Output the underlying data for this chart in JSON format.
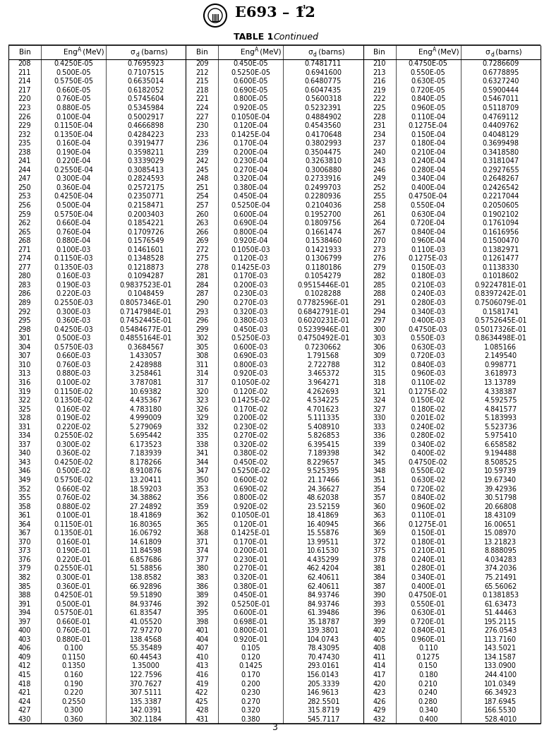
{
  "title_text": "E693 – 12",
  "title_superscript": "ε¹",
  "table_label": "TABLE 1",
  "table_continued": "Continued",
  "page_number": "3",
  "col_headers_bin": "Bin",
  "col_headers_eng": "Eng",
  "col_headers_eng_sup": "A",
  "col_headers_eng_unit": " (MeV)",
  "col_headers_sig": "σ",
  "col_headers_sig_sub": "d",
  "col_headers_sig_unit": " (barns)",
  "rows": [
    [
      208,
      "0.4250E-05",
      "0.7695923",
      209,
      "0.450E-05",
      "0.7481711",
      210,
      "0.4750E-05",
      "0.7286609"
    ],
    [
      211,
      "0.500E-05",
      "0.7107515",
      212,
      "0.5250E-05",
      "0.6941600",
      213,
      "0.550E-05",
      "0.6778895"
    ],
    [
      214,
      "0.5750E-05",
      "0.6635014",
      215,
      "0.600E-05",
      "0.6480775",
      216,
      "0.630E-05",
      "0.6327240"
    ],
    [
      217,
      "0.660E-05",
      "0.6182052",
      218,
      "0.690E-05",
      "0.6047435",
      219,
      "0.720E-05",
      "0.5900444"
    ],
    [
      220,
      "0.760E-05",
      "0.5745604",
      221,
      "0.800E-05",
      "0.5600318",
      222,
      "0.840E-05",
      "0.5467011"
    ],
    [
      223,
      "0.880E-05",
      "0.5345984",
      224,
      "0.920E-05",
      "0.5232391",
      225,
      "0.960E-05",
      "0.5118709"
    ],
    [
      226,
      "0.100E-04",
      "0.5002917",
      227,
      "0.1050E-04",
      "0.4884902",
      228,
      "0.110E-04",
      "0.4769112"
    ],
    [
      229,
      "0.1150E-04",
      "0.4666898",
      230,
      "0.120E-04",
      "0.4543560",
      231,
      "0.1275E-04",
      "0.4409762"
    ],
    [
      232,
      "0.1350E-04",
      "0.4284223",
      233,
      "0.1425E-04",
      "0.4170648",
      234,
      "0.150E-04",
      "0.4048129"
    ],
    [
      235,
      "0.160E-04",
      "0.3919477",
      236,
      "0.170E-04",
      "0.3802993",
      237,
      "0.180E-04",
      "0.3699498"
    ],
    [
      238,
      "0.190E-04",
      "0.3598211",
      239,
      "0.200E-04",
      "0.3504475",
      240,
      "0.210E-04",
      "0.3418580"
    ],
    [
      241,
      "0.220E-04",
      "0.3339029",
      242,
      "0.230E-04",
      "0.3263810",
      243,
      "0.240E-04",
      "0.3181047"
    ],
    [
      244,
      "0.2550E-04",
      "0.3085413",
      245,
      "0.270E-04",
      "0.3006880",
      246,
      "0.280E-04",
      "0.2927655"
    ],
    [
      247,
      "0.300E-04",
      "0.2824593",
      248,
      "0.320E-04",
      "0.2733916",
      249,
      "0.340E-04",
      "0.2648267"
    ],
    [
      250,
      "0.360E-04",
      "0.2572175",
      251,
      "0.380E-04",
      "0.2499703",
      252,
      "0.400E-04",
      "0.2426542"
    ],
    [
      253,
      "0.4250E-04",
      "0.2350771",
      254,
      "0.450E-04",
      "0.2280936",
      255,
      "0.4750E-04",
      "0.2217044"
    ],
    [
      256,
      "0.500E-04",
      "0.2158471",
      257,
      "0.5250E-04",
      "0.2104036",
      258,
      "0.550E-04",
      "0.2050605"
    ],
    [
      259,
      "0.5750E-04",
      "0.2003403",
      260,
      "0.600E-04",
      "0.1952700",
      261,
      "0.630E-04",
      "0.1902102"
    ],
    [
      262,
      "0.660E-04",
      "0.1854221",
      263,
      "0.690E-04",
      "0.1809756",
      264,
      "0.720E-04",
      "0.1761094"
    ],
    [
      265,
      "0.760E-04",
      "0.1709726",
      266,
      "0.800E-04",
      "0.1661474",
      267,
      "0.840E-04",
      "0.1616956"
    ],
    [
      268,
      "0.880E-04",
      "0.1576549",
      269,
      "0.920E-04",
      "0.1538460",
      270,
      "0.960E-04",
      "0.1500470"
    ],
    [
      271,
      "0.100E-03",
      "0.1461601",
      272,
      "0.1050E-03",
      "0.1421933",
      273,
      "0.110E-03",
      "0.1382971"
    ],
    [
      274,
      "0.1150E-03",
      "0.1348528",
      275,
      "0.120E-03",
      "0.1306799",
      276,
      "0.1275E-03",
      "0.1261477"
    ],
    [
      277,
      "0.1350E-03",
      "0.1218873",
      278,
      "0.1425E-03",
      "0.1180186",
      279,
      "0.150E-03",
      "0.1138330"
    ],
    [
      280,
      "0.160E-03",
      "0.1094287",
      281,
      "0.170E-03",
      "0.1054279",
      282,
      "0.180E-03",
      "0.1018602"
    ],
    [
      283,
      "0.190E-03",
      "0.9837523E-01",
      284,
      "0.200E-03",
      "0.9515446E-01",
      285,
      "0.210E-03",
      "0.9224781E-01"
    ],
    [
      286,
      "0.220E-03",
      "0.1048459",
      287,
      "0.230E-03",
      "0.1028288",
      288,
      "0.240E-03",
      "0.8397242E-01"
    ],
    [
      289,
      "0.2550E-03",
      "0.8057346E-01",
      290,
      "0.270E-03",
      "0.7782596E-01",
      291,
      "0.280E-03",
      "0.7506079E-01"
    ],
    [
      292,
      "0.300E-03",
      "0.7147984E-01",
      293,
      "0.320E-03",
      "0.6842791E-01",
      294,
      "0.340E-03",
      "0.1581741"
    ],
    [
      295,
      "0.360E-03",
      "0.7452445E-01",
      296,
      "0.380E-03",
      "0.6020231E-01",
      297,
      "0.400E-03",
      "0.5752645E-01"
    ],
    [
      298,
      "0.4250E-03",
      "0.5484677E-01",
      299,
      "0.450E-03",
      "0.5239946E-01",
      300,
      "0.4750E-03",
      "0.5017326E-01"
    ],
    [
      301,
      "0.500E-03",
      "0.4855164E-01",
      302,
      "0.5250E-03",
      "0.4750492E-01",
      303,
      "0.550E-03",
      "0.8634498E-01"
    ],
    [
      304,
      "0.5750E-03",
      "0.3684567",
      305,
      "0.600E-03",
      "0.7230662",
      306,
      "0.630E-03",
      "1.085166"
    ],
    [
      307,
      "0.660E-03",
      "1.433057",
      308,
      "0.690E-03",
      "1.791568",
      309,
      "0.720E-03",
      "2.149540"
    ],
    [
      310,
      "0.760E-03",
      "2.428988",
      311,
      "0.800E-03",
      "2.722788",
      312,
      "0.840E-03",
      "0.998771"
    ],
    [
      313,
      "0.880E-03",
      "3.258461",
      314,
      "0.920E-03",
      "3.465372",
      315,
      "0.960E-03",
      "3.618973"
    ],
    [
      316,
      "0.100E-02",
      "3.787081",
      317,
      "0.1050E-02",
      "3.964271",
      318,
      "0.110E-02",
      "13.13789"
    ],
    [
      319,
      "0.1150E-02",
      "10.69382",
      320,
      "0.120E-02",
      "4.262693",
      321,
      "0.1275E-02",
      "4.338387"
    ],
    [
      322,
      "0.1350E-02",
      "4.435367",
      323,
      "0.1425E-02",
      "4.534225",
      324,
      "0.150E-02",
      "4.592575"
    ],
    [
      325,
      "0.160E-02",
      "4.783180",
      326,
      "0.170E-02",
      "4.701623",
      327,
      "0.180E-02",
      "4.841577"
    ],
    [
      328,
      "0.190E-02",
      "4.999009",
      329,
      "0.200E-02",
      "5.111335",
      330,
      "0.201E-02",
      "5.183993"
    ],
    [
      331,
      "0.220E-02",
      "5.279069",
      332,
      "0.230E-02",
      "5.408910",
      333,
      "0.240E-02",
      "5.523736"
    ],
    [
      334,
      "0.2550E-02",
      "5.695442",
      335,
      "0.270E-02",
      "5.826853",
      336,
      "0.280E-02",
      "5.975410"
    ],
    [
      337,
      "0.300E-02",
      "6.173523",
      338,
      "0.320E-02",
      "6.395415",
      339,
      "0.340E-02",
      "6.658582"
    ],
    [
      340,
      "0.360E-02",
      "7.183939",
      341,
      "0.380E-02",
      "7.189398",
      342,
      "0.400E-02",
      "9.194488"
    ],
    [
      343,
      "0.4250E-02",
      "8.178266",
      344,
      "0.450E-02",
      "8.229657",
      345,
      "0.4750E-02",
      "8.508525"
    ],
    [
      346,
      "0.500E-02",
      "8.910876",
      347,
      "0.5250E-02",
      "9.525395",
      348,
      "0.550E-02",
      "10.59739"
    ],
    [
      349,
      "0.5750E-02",
      "13.20411",
      350,
      "0.600E-02",
      "21.17466",
      351,
      "0.630E-02",
      "19.67340"
    ],
    [
      352,
      "0.660E-02",
      "18.59203",
      353,
      "0.690E-02",
      "24.36627",
      354,
      "0.720E-02",
      "39.42936"
    ],
    [
      355,
      "0.760E-02",
      "34.38862",
      356,
      "0.800E-02",
      "48.62038",
      357,
      "0.840E-02",
      "30.51798"
    ],
    [
      358,
      "0.880E-02",
      "27.24892",
      359,
      "0.920E-02",
      "23.52159",
      360,
      "0.960E-02",
      "20.66808"
    ],
    [
      361,
      "0.100E-01",
      "18.41869",
      362,
      "0.1050E-01",
      "18.41869",
      363,
      "0.110E-01",
      "18.43109"
    ],
    [
      364,
      "0.1150E-01",
      "16.80365",
      365,
      "0.120E-01",
      "16.40945",
      366,
      "0.1275E-01",
      "16.00651"
    ],
    [
      367,
      "0.1350E-01",
      "16.06792",
      368,
      "0.1425E-01",
      "15.55876",
      369,
      "0.150E-01",
      "15.08970"
    ],
    [
      370,
      "0.160E-01",
      "14.61809",
      371,
      "0.170E-01",
      "13.99511",
      372,
      "0.180E-01",
      "13.21823"
    ],
    [
      373,
      "0.190E-01",
      "11.84598",
      374,
      "0.200E-01",
      "10.61530",
      375,
      "0.210E-01",
      "8.888095"
    ],
    [
      376,
      "0.220E-01",
      "6.857686",
      377,
      "0.230E-01",
      "4.435299",
      378,
      "0.240E-01",
      "4.034283"
    ],
    [
      379,
      "0.2550E-01",
      "51.58856",
      380,
      "0.270E-01",
      "462.4204",
      381,
      "0.280E-01",
      "374.2036"
    ],
    [
      382,
      "0.300E-01",
      "138.8582",
      383,
      "0.320E-01",
      "62.40611",
      384,
      "0.340E-01",
      "75.21491"
    ],
    [
      385,
      "0.360E-01",
      "66.92896",
      386,
      "0.380E-01",
      "62.40611",
      387,
      "0.400E-01",
      "65.56062"
    ],
    [
      388,
      "0.4250E-01",
      "59.51890",
      389,
      "0.450E-01",
      "84.93746",
      390,
      "0.4750E-01",
      "0.1381853"
    ],
    [
      391,
      "0.500E-01",
      "84.93746",
      392,
      "0.5250E-01",
      "84.93746",
      393,
      "0.550E-01",
      "61.63473"
    ],
    [
      394,
      "0.5750E-01",
      "61.83547",
      395,
      "0.600E-01",
      "61.39486",
      396,
      "0.630E-01",
      "51.44463"
    ],
    [
      397,
      "0.660E-01",
      "41.05520",
      398,
      "0.698E-01",
      "35.18787",
      399,
      "0.720E-01",
      "195.2115"
    ],
    [
      400,
      "0.760E-01",
      "72.97270",
      401,
      "0.800E-01",
      "139.3801",
      402,
      "0.840E-01",
      "276.0543"
    ],
    [
      403,
      "0.880E-01",
      "138.4568",
      404,
      "0.920E-01",
      "104.0743",
      405,
      "0.960E-01",
      "113.7160"
    ],
    [
      406,
      "0.100",
      "55.35489",
      407,
      "0.105",
      "78.43095",
      408,
      "0.110",
      "143.5021"
    ],
    [
      409,
      "0.1150",
      "60.44543",
      410,
      "0.120",
      "70.47430",
      411,
      "0.1275",
      "134.1587"
    ],
    [
      412,
      "0.1350",
      "1.35000",
      413,
      "0.1425",
      "293.0161",
      414,
      "0.150",
      "133.0900"
    ],
    [
      415,
      "0.160",
      "122.7596",
      416,
      "0.170",
      "156.0143",
      417,
      "0.180",
      "244.4100"
    ],
    [
      418,
      "0.190",
      "370.7627",
      419,
      "0.200",
      "205.3339",
      420,
      "0.210",
      "101.0349"
    ],
    [
      421,
      "0.220",
      "307.5111",
      422,
      "0.230",
      "146.9613",
      423,
      "0.240",
      "66.34923"
    ],
    [
      424,
      "0.2550",
      "135.3387",
      425,
      "0.270",
      "282.5501",
      426,
      "0.280",
      "187.6945"
    ],
    [
      427,
      "0.300",
      "142.0391",
      428,
      "0.320",
      "315.8719",
      429,
      "0.340",
      "166.5530"
    ],
    [
      430,
      "0.360",
      "302.1184",
      431,
      "0.380",
      "545.7117",
      432,
      "0.400",
      "528.4010"
    ]
  ]
}
